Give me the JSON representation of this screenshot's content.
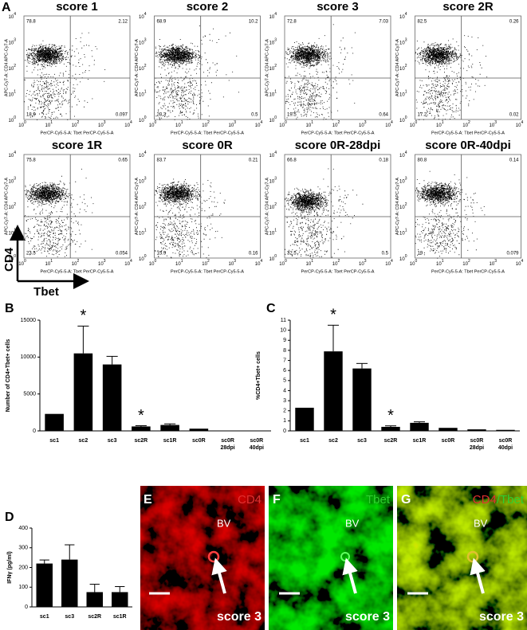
{
  "panel_letters": [
    "A",
    "B",
    "C",
    "D",
    "E",
    "F",
    "G"
  ],
  "flow": {
    "y_axis_label": "APC-Cy7-A: CD4 APC-Cy7-A",
    "x_axis_label": "PerCP-Cy5-5-A: Tbet PerCP-Cy5-5-A",
    "tick_base": "10",
    "tick_exponents": [
      "0",
      "1",
      "2",
      "3",
      "4"
    ],
    "plots": [
      {
        "title": "score 1",
        "quadrants": [
          "78.8",
          "2.12",
          "18.9",
          "0.097"
        ]
      },
      {
        "title": "score 2",
        "quadrants": [
          "68.9",
          "10.2",
          "20.3",
          "0.5"
        ]
      },
      {
        "title": "score 3",
        "quadrants": [
          "72.8",
          "7.03",
          "19.5",
          "0.64"
        ]
      },
      {
        "title": "score 2R",
        "quadrants": [
          "82.5",
          "0.26",
          "17.2",
          "0.02"
        ]
      },
      {
        "title": "score 1R",
        "quadrants": [
          "75.8",
          "0.65",
          "23.5",
          "0.054"
        ]
      },
      {
        "title": "score 0R",
        "quadrants": [
          "83.7",
          "0.21",
          "15.9",
          "0.16"
        ]
      },
      {
        "title": "score 0R-28dpi",
        "quadrants": [
          "66.8",
          "0.18",
          "32.5",
          "0.5"
        ]
      },
      {
        "title": "score 0R-40dpi",
        "quadrants": [
          "80.8",
          "0.14",
          "19",
          "0.079"
        ]
      }
    ],
    "marker_axes": {
      "y": "CD4",
      "x": "Tbet"
    }
  },
  "chart_data": [
    {
      "type": "bar",
      "y_label": "Number of CD4+Tbet+ cells",
      "categories": [
        "sc1",
        "sc2",
        "sc3",
        "sc2R",
        "sc1R",
        "sc0R",
        "sc0R\n28dpi",
        "sc0R\n40dpi"
      ],
      "values": [
        2300,
        10500,
        9000,
        600,
        800,
        300,
        50,
        20
      ],
      "errors": [
        null,
        3700,
        1100,
        100,
        150,
        null,
        null,
        null
      ],
      "markers": [
        null,
        "*",
        null,
        "*",
        null,
        null,
        null,
        null
      ],
      "color": "#000000",
      "ylim": [
        0,
        15000
      ],
      "yticks": [
        0,
        5000,
        10000,
        15000
      ]
    },
    {
      "type": "bar",
      "y_label": "%CD4+Tbet+ cells",
      "categories": [
        "sc1",
        "sc2",
        "sc3",
        "sc2R",
        "sc1R",
        "sc0R",
        "sc0R\n28dpi",
        "sc0R\n40dpi"
      ],
      "values": [
        2.3,
        7.9,
        6.2,
        0.4,
        0.8,
        0.3,
        0.15,
        0.1
      ],
      "errors": [
        null,
        2.6,
        0.5,
        0.1,
        0.1,
        null,
        null,
        null
      ],
      "markers": [
        null,
        "*",
        null,
        "*",
        null,
        null,
        null,
        null
      ],
      "color": "#000000",
      "ylim": [
        0,
        11
      ],
      "yticks": [
        0,
        1,
        2,
        3,
        4,
        5,
        6,
        7,
        8,
        9,
        10,
        11
      ]
    },
    {
      "type": "bar",
      "y_label": "IFNγ (pg/ml)",
      "categories": [
        "sc1",
        "sc3",
        "sc2R",
        "sc1R"
      ],
      "values": [
        220,
        240,
        75,
        75
      ],
      "errors": [
        18,
        75,
        40,
        28
      ],
      "color": "#000000",
      "ylim": [
        0,
        400
      ],
      "yticks": [
        0,
        100,
        200,
        300,
        400
      ]
    }
  ],
  "images": [
    {
      "stain": [
        {
          "text": "CD4",
          "color": "#e03030"
        }
      ],
      "vessel": "BV",
      "caption": "score 3"
    },
    {
      "stain": [
        {
          "text": "Tbet",
          "color": "#30d030"
        }
      ],
      "vessel": "BV",
      "caption": "score 3"
    },
    {
      "stain": [
        {
          "text": "CD4",
          "color": "#e03030"
        },
        {
          "text": "/Tbet",
          "color": "#30d030"
        }
      ],
      "vessel": "BV",
      "caption": "score 3"
    }
  ]
}
